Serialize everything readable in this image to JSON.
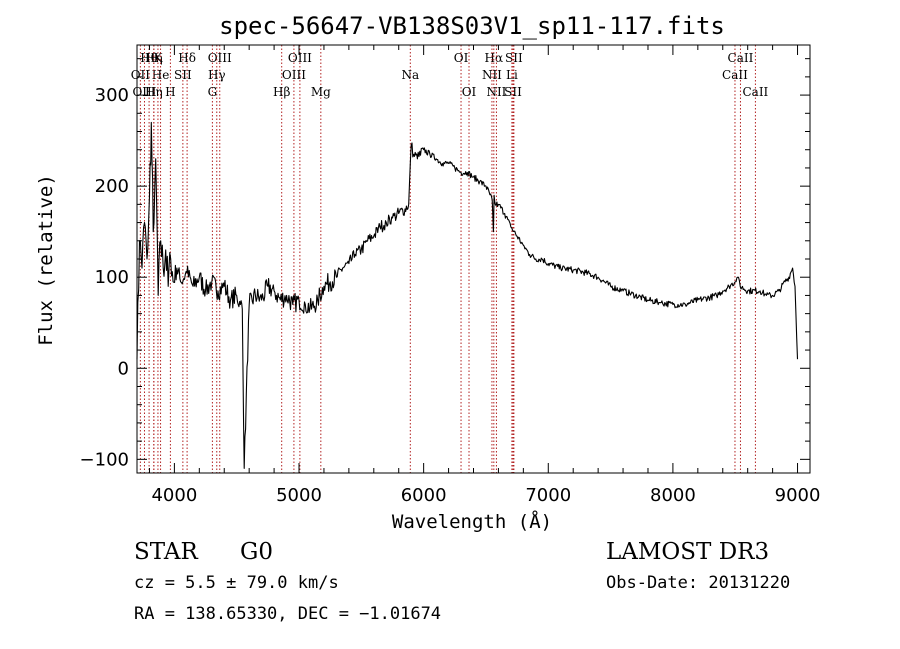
{
  "chart_data": {
    "type": "line",
    "title": "spec-56647-VB138S03V1_sp11-117.fits",
    "xlabel": "Wavelength (Å)",
    "ylabel": "Flux (relative)",
    "xlim": [
      3700,
      9100
    ],
    "ylim": [
      -115,
      355
    ],
    "xticks": [
      4000,
      5000,
      6000,
      7000,
      8000,
      9000
    ],
    "xtick_labels": [
      "4000",
      "5000",
      "6000",
      "7000",
      "8000",
      "9000"
    ],
    "yticks": [
      -100,
      0,
      100,
      200,
      300
    ],
    "ytick_labels": [
      "−100",
      "0",
      "100",
      "200",
      "300"
    ],
    "grid": false,
    "legend": "none",
    "line_color": "#000000",
    "marker_line_color": "#b22222",
    "series": [
      {
        "x": [
          3700,
          3720,
          3740,
          3760,
          3780,
          3800,
          3815,
          3830,
          3850,
          3870,
          3890,
          3910,
          3930,
          3950,
          3970,
          3990,
          4020,
          4050,
          4100,
          4150,
          4200,
          4250,
          4300,
          4350,
          4400,
          4450,
          4500,
          4530,
          4545,
          4560,
          4600,
          4650,
          4700,
          4750,
          4800,
          4850,
          4900,
          4950,
          5000,
          5050,
          5100,
          5150,
          5200,
          5250,
          5300,
          5350,
          5400,
          5450,
          5500,
          5550,
          5600,
          5650,
          5700,
          5750,
          5800,
          5850,
          5880,
          5900,
          5920,
          5950,
          6000,
          6050,
          6100,
          6150,
          6200,
          6250,
          6300,
          6350,
          6400,
          6450,
          6500,
          6550,
          6560,
          6565,
          6575,
          6600,
          6650,
          6700,
          6750,
          6800,
          6850,
          6900,
          6950,
          7000,
          7100,
          7200,
          7300,
          7400,
          7500,
          7600,
          7700,
          7800,
          7900,
          8000,
          8100,
          8200,
          8300,
          8350,
          8400,
          8450,
          8500,
          8520,
          8540,
          8600,
          8700,
          8750,
          8800,
          8850,
          8900,
          8930,
          8960,
          8980,
          9000
        ],
        "y": [
          10,
          140,
          110,
          160,
          120,
          190,
          270,
          150,
          230,
          80,
          140,
          110,
          130,
          90,
          120,
          95,
          110,
          95,
          105,
          90,
          100,
          85,
          95,
          85,
          90,
          75,
          80,
          70,
          65,
          -110,
          70,
          80,
          75,
          90,
          85,
          75,
          80,
          70,
          75,
          70,
          65,
          75,
          90,
          95,
          100,
          110,
          115,
          125,
          130,
          140,
          145,
          155,
          160,
          165,
          170,
          175,
          180,
          245,
          235,
          230,
          240,
          235,
          230,
          225,
          225,
          220,
          215,
          215,
          210,
          205,
          200,
          185,
          150,
          190,
          180,
          180,
          170,
          155,
          145,
          135,
          125,
          120,
          120,
          115,
          110,
          108,
          105,
          100,
          90,
          85,
          80,
          75,
          72,
          70,
          70,
          75,
          78,
          80,
          85,
          90,
          95,
          100,
          90,
          85,
          85,
          80,
          80,
          85,
          95,
          100,
          110,
          90,
          10
        ]
      }
    ],
    "line_markers_top": [
      {
        "x": 3797,
        "row": 1,
        "label": "Hθ"
      },
      {
        "x": 3835,
        "row": 1,
        "label": "Hη"
      },
      {
        "x": 3868,
        "row": 1,
        "label": "K"
      },
      {
        "x": 4102,
        "row": 1,
        "label": "Hδ"
      },
      {
        "x": 4364,
        "row": 1,
        "label": "OIII"
      },
      {
        "x": 5007,
        "row": 1,
        "label": "OIII"
      },
      {
        "x": 6300,
        "row": 1,
        "label": "OI"
      },
      {
        "x": 6563,
        "row": 1,
        "label": "Hα"
      },
      {
        "x": 6724,
        "row": 1,
        "label": "SII"
      },
      {
        "x": 8542,
        "row": 1,
        "label": "CaII"
      },
      {
        "x": 3727,
        "row": 2,
        "label": "OII"
      },
      {
        "x": 3889,
        "row": 2,
        "label": "He"
      },
      {
        "x": 4068,
        "row": 2,
        "label": "SII"
      },
      {
        "x": 4340,
        "row": 2,
        "label": "Hγ"
      },
      {
        "x": 4959,
        "row": 2,
        "label": "OIII"
      },
      {
        "x": 5893,
        "row": 2,
        "label": "Na"
      },
      {
        "x": 6548,
        "row": 2,
        "label": "NII"
      },
      {
        "x": 6708,
        "row": 2,
        "label": "Li"
      },
      {
        "x": 8498,
        "row": 2,
        "label": "CaII"
      }
    ],
    "line_markers_bottom": [
      {
        "x": 3760,
        "label": "OIII"
      },
      {
        "x": 3835,
        "label": "Hη"
      },
      {
        "x": 3968,
        "label": "H"
      },
      {
        "x": 4305,
        "label": "G"
      },
      {
        "x": 4861,
        "label": "Hβ"
      },
      {
        "x": 5175,
        "label": "Mg"
      },
      {
        "x": 6364,
        "label": "OI"
      },
      {
        "x": 6584,
        "label": "NII"
      },
      {
        "x": 6717,
        "label": "SII"
      },
      {
        "x": 8662,
        "label": "CaII"
      }
    ]
  },
  "info": {
    "object_type": "STAR",
    "subclass": "G0",
    "survey": "LAMOST DR3",
    "redshift": "cz = 5.5 ± 79.0 km/s",
    "obs_date": "Obs-Date: 20131220",
    "coords": "RA = 138.65330, DEC =  −1.01674"
  }
}
